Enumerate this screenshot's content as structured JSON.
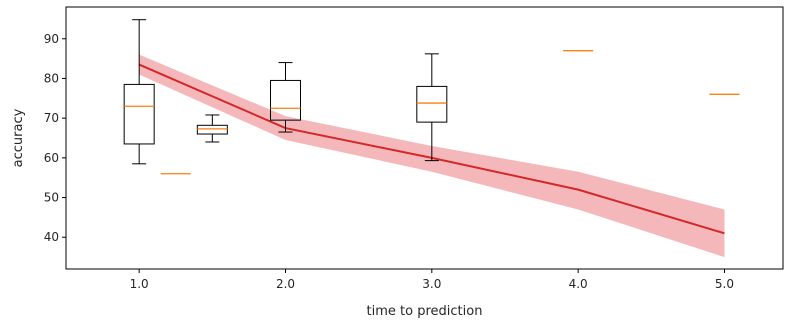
{
  "chart_data": {
    "type": "line",
    "title": "",
    "xlabel": "time to prediction",
    "ylabel": "accuracy",
    "xlim": [
      0.5,
      5.4
    ],
    "ylim": [
      32,
      98
    ],
    "x_ticks": [
      1.0,
      2.0,
      3.0,
      4.0,
      5.0
    ],
    "x_tick_labels": [
      "1.0",
      "2.0",
      "3.0",
      "4.0",
      "5.0"
    ],
    "y_ticks": [
      40,
      50,
      60,
      70,
      80,
      90
    ],
    "y_tick_labels": [
      "40",
      "50",
      "60",
      "70",
      "80",
      "90"
    ],
    "grid": false,
    "legend": "none",
    "colors": {
      "line": "#d62728",
      "band": "#f0a0a4",
      "median": "#ff7f0e",
      "box": "#000000"
    },
    "line_series": {
      "x": [
        1.0,
        2.0,
        3.0,
        4.0,
        5.0
      ],
      "y": [
        83.5,
        67.5,
        60,
        52,
        41
      ],
      "lower": [
        81,
        64.5,
        56.5,
        47,
        35
      ],
      "upper": [
        86,
        70.5,
        63,
        56.5,
        47
      ]
    },
    "boxplots": [
      {
        "x": 1.0,
        "whislo": 58.5,
        "q1": 63.5,
        "med": 73,
        "q3": 78.5,
        "whishi": 94.8
      },
      {
        "x": 1.25,
        "whislo": 56,
        "q1": 56,
        "med": 56,
        "q3": 56,
        "whishi": 56
      },
      {
        "x": 1.5,
        "whislo": 64,
        "q1": 66,
        "med": 67.3,
        "q3": 68.2,
        "whishi": 70.8
      },
      {
        "x": 2.0,
        "whislo": 66.5,
        "q1": 69.5,
        "med": 72.5,
        "q3": 79.5,
        "whishi": 84
      },
      {
        "x": 3.0,
        "whislo": 59.3,
        "q1": 69,
        "med": 73.8,
        "q3": 78,
        "whishi": 86.2
      },
      {
        "x": 4.0,
        "whislo": 87,
        "q1": 87,
        "med": 87,
        "q3": 87,
        "whishi": 87
      },
      {
        "x": 5.0,
        "whislo": 76,
        "q1": 76,
        "med": 76,
        "q3": 76,
        "whishi": 76
      }
    ]
  }
}
